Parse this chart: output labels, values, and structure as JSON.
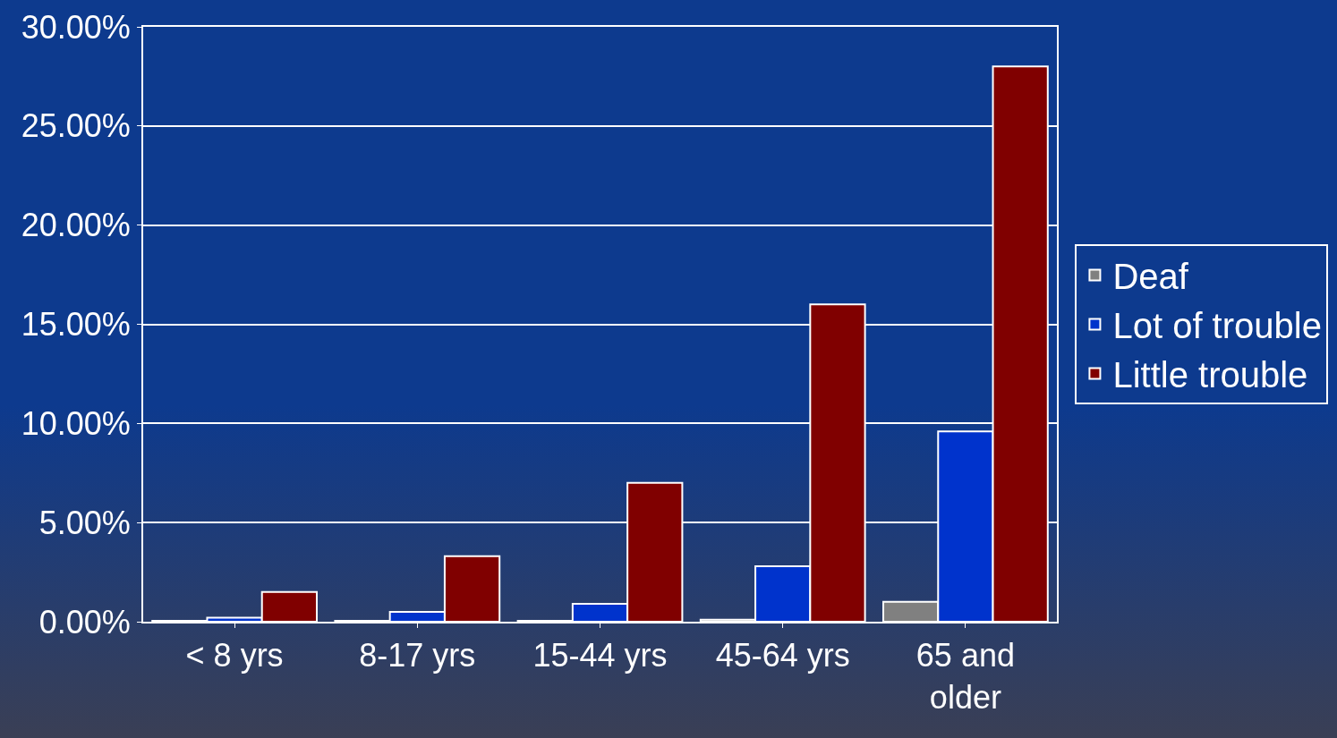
{
  "chart_data": {
    "type": "bar",
    "categories": [
      "< 8 yrs",
      "8-17 yrs",
      "15-44 yrs",
      "45-64 yrs",
      "65 and older"
    ],
    "series": [
      {
        "name": "Deaf",
        "color": "#808080",
        "values": [
          0.05,
          0.05,
          0.05,
          0.1,
          1.0
        ]
      },
      {
        "name": "Lot of trouble",
        "color": "#0033cc",
        "values": [
          0.2,
          0.5,
          0.9,
          2.8,
          9.6
        ]
      },
      {
        "name": "Little trouble",
        "color": "#800000",
        "values": [
          1.5,
          3.3,
          7.0,
          16.0,
          28.0
        ]
      }
    ],
    "ylim": [
      0,
      30
    ],
    "yticks": [
      {
        "value": 0,
        "label": "0.00%"
      },
      {
        "value": 5,
        "label": "5.00%"
      },
      {
        "value": 10,
        "label": "10.00%"
      },
      {
        "value": 15,
        "label": "15.00%"
      },
      {
        "value": 20,
        "label": "20.00%"
      },
      {
        "value": 25,
        "label": "25.00%"
      },
      {
        "value": 30,
        "label": "30.00%"
      }
    ],
    "grid": "y",
    "legend": "right"
  }
}
